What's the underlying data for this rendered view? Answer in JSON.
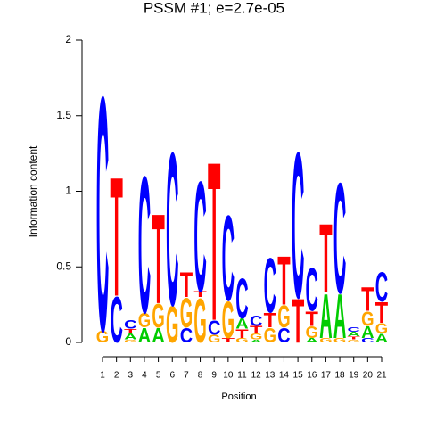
{
  "chart_data": {
    "type": "logo",
    "title": "PSSM #1; e=2.7e-05",
    "x_label": "Position",
    "y_label": "Information content",
    "categories": [
      1,
      2,
      3,
      4,
      5,
      6,
      7,
      8,
      9,
      10,
      11,
      12,
      13,
      14,
      15,
      16,
      17,
      18,
      19,
      20,
      21
    ],
    "stacks": [
      {
        "letters": [
          "G",
          "C"
        ],
        "values": [
          0.08,
          1.6
        ]
      },
      {
        "letters": [
          "C",
          "T"
        ],
        "values": [
          0.31,
          0.81
        ]
      },
      {
        "letters": [
          "G",
          "A",
          "T",
          "C"
        ],
        "values": [
          0.02,
          0.04,
          0.03,
          0.06
        ]
      },
      {
        "letters": [
          "A",
          "G",
          "C"
        ],
        "values": [
          0.1,
          0.1,
          0.93
        ]
      },
      {
        "letters": [
          "A",
          "G",
          "T"
        ],
        "values": [
          0.1,
          0.16,
          0.61
        ]
      },
      {
        "letters": [
          "G",
          "C"
        ],
        "values": [
          0.25,
          1.04
        ]
      },
      {
        "letters": [
          "C",
          "G",
          "T"
        ],
        "values": [
          0.1,
          0.2,
          0.17
        ]
      },
      {
        "letters": [
          "G",
          "T",
          "C"
        ],
        "values": [
          0.3,
          0.04,
          0.75
        ]
      },
      {
        "letters": [
          "G",
          "C",
          "T"
        ],
        "values": [
          0.05,
          0.1,
          1.08
        ]
      },
      {
        "letters": [
          "T",
          "G",
          "C"
        ],
        "values": [
          0.03,
          0.25,
          0.58
        ]
      },
      {
        "letters": [
          "G",
          "T",
          "A",
          "C"
        ],
        "values": [
          0.03,
          0.06,
          0.07,
          0.27
        ]
      },
      {
        "letters": [
          "A",
          "G",
          "T",
          "C"
        ],
        "values": [
          0.02,
          0.04,
          0.05,
          0.07
        ]
      },
      {
        "letters": [
          "G",
          "T",
          "C"
        ],
        "values": [
          0.1,
          0.1,
          0.37
        ]
      },
      {
        "letters": [
          "C",
          "G",
          "T"
        ],
        "values": [
          0.1,
          0.15,
          0.33
        ]
      },
      {
        "letters": [
          "T",
          "C"
        ],
        "values": [
          0.3,
          0.99
        ]
      },
      {
        "letters": [
          "A",
          "G",
          "T",
          "C"
        ],
        "values": [
          0.03,
          0.08,
          0.1,
          0.29
        ]
      },
      {
        "letters": [
          "G",
          "A",
          "T"
        ],
        "values": [
          0.03,
          0.3,
          0.47
        ]
      },
      {
        "letters": [
          "G",
          "A",
          "C"
        ],
        "values": [
          0.03,
          0.3,
          0.75
        ]
      },
      {
        "letters": [
          "G",
          "T",
          "A",
          "C"
        ],
        "values": [
          0.02,
          0.02,
          0.03,
          0.03
        ]
      },
      {
        "letters": [
          "C",
          "A",
          "G",
          "T"
        ],
        "values": [
          0.03,
          0.08,
          0.1,
          0.16
        ]
      },
      {
        "letters": [
          "A",
          "G",
          "T",
          "C"
        ],
        "values": [
          0.06,
          0.07,
          0.14,
          0.2
        ]
      }
    ],
    "colors": {
      "A": "#00cc00",
      "C": "#0000ff",
      "G": "#ffa500",
      "T": "#ff0000"
    },
    "title_color": "#00dd00",
    "ylim": [
      0,
      2
    ],
    "yticks": [
      0,
      0.5,
      1,
      1.5,
      2
    ]
  }
}
